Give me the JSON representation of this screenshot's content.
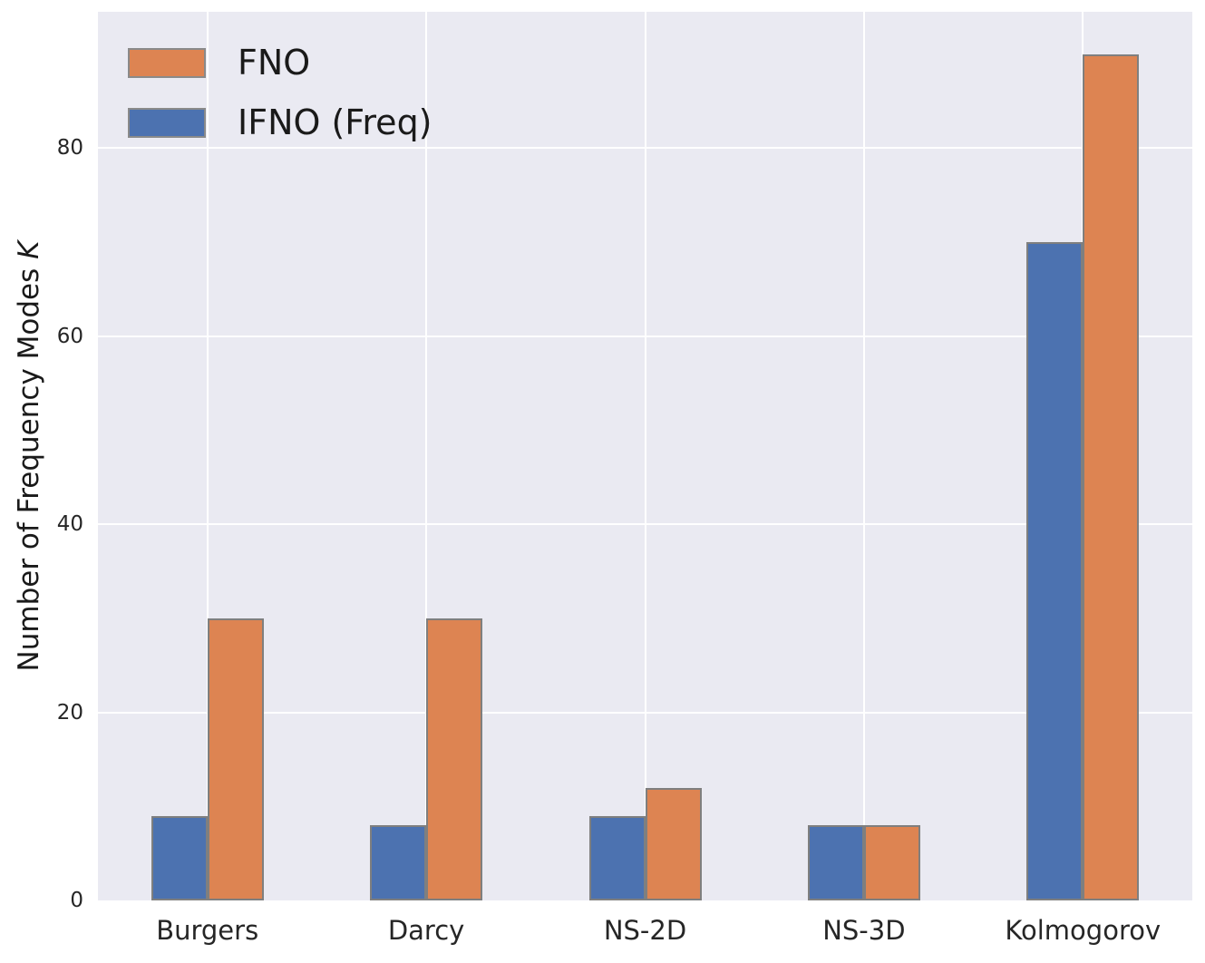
{
  "chart_data": {
    "type": "bar",
    "title": "",
    "categories": [
      "Burgers",
      "Darcy",
      "NS-2D",
      "NS-3D",
      "Kolmogorov"
    ],
    "series": [
      {
        "name": "IFNO (Freq)",
        "color": "#4C72B0",
        "values": [
          9,
          8,
          9,
          8,
          70
        ]
      },
      {
        "name": "FNO",
        "color": "#DD8452",
        "values": [
          30,
          30,
          12,
          8,
          90
        ]
      }
    ],
    "legend": [
      {
        "label": "FNO",
        "color": "#DD8452"
      },
      {
        "label": "IFNO (Freq)",
        "color": "#4C72B0"
      }
    ],
    "legend_position": "upper left",
    "ylabel": "Number of Frequency Modes K",
    "ylabel_text": "Number of Frequency Modes ",
    "ylabel_var": "K",
    "xlabel": "",
    "yticks": [
      0,
      20,
      40,
      60,
      80
    ],
    "ylim": [
      0,
      94.5
    ],
    "grid": true,
    "colors": {
      "figure_background": "#FFFFFF",
      "plot_background": "#EAEAF2",
      "grid_line": "#FFFFFF",
      "bar_edge": "#7F7F7F",
      "text": "#262626"
    }
  }
}
